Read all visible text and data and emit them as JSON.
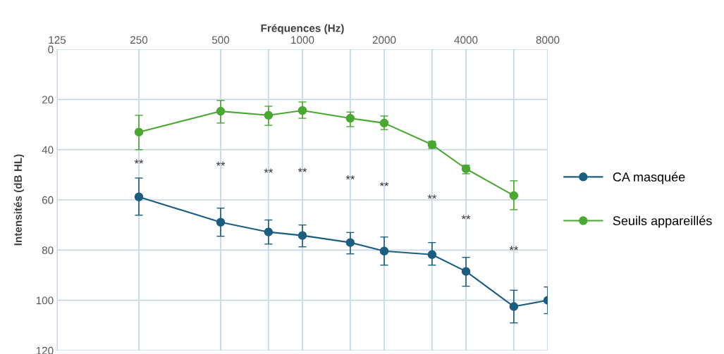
{
  "chart_data": {
    "type": "line",
    "xlabel": "Fréquences (Hz)",
    "ylabel": "Intensités (dB HL)",
    "log": "x",
    "xlim": [
      125,
      8000
    ],
    "ylim": [
      120,
      0
    ],
    "xticks": [
      125,
      250,
      500,
      {
        "value": 750,
        "label": null
      },
      1000,
      {
        "value": 1500,
        "label": null
      },
      2000,
      {
        "value": 3000,
        "label": null
      },
      4000,
      {
        "value": 6000,
        "label": null
      },
      8000
    ],
    "yticks": [
      0,
      20,
      40,
      60,
      80,
      100,
      120
    ],
    "grid": true,
    "legend": "right",
    "marker": "circle",
    "line_style": "solid",
    "series": [
      {
        "name": "CA masquée",
        "color": "#1b5e80",
        "x": [
          250,
          500,
          750,
          1000,
          1500,
          2000,
          3000,
          4000,
          6000,
          8000
        ],
        "values": [
          58.8,
          68.9,
          72.8,
          74.2,
          77,
          80.4,
          81.8,
          88.5,
          102.5,
          100
        ],
        "errors": [
          [
            51.3,
            66.1
          ],
          [
            63.3,
            74.5
          ],
          [
            68,
            77.6
          ],
          [
            70,
            78.7
          ],
          [
            73,
            81.5
          ],
          [
            74.8,
            86
          ],
          [
            77,
            86
          ],
          [
            82.9,
            94.4
          ],
          [
            96,
            109
          ],
          [
            94.7,
            105.3
          ]
        ]
      },
      {
        "name": "Seuils appareillés",
        "color": "#4aa832",
        "x": [
          250,
          500,
          750,
          1000,
          1500,
          2000,
          3000,
          4000,
          6000
        ],
        "values": [
          33,
          24.7,
          26.3,
          24.4,
          27.5,
          29.4,
          38,
          47.6,
          58.3
        ],
        "errors": [
          [
            26.3,
            40
          ],
          [
            20.4,
            29.4
          ],
          [
            22.7,
            30.3
          ],
          [
            21,
            27.5
          ],
          [
            25,
            30.8
          ],
          [
            26.6,
            32
          ],
          [
            36.7,
            39.5
          ],
          [
            46.2,
            49.6
          ],
          [
            52.4,
            63.9
          ]
        ]
      }
    ],
    "annotations": [
      "**",
      "**",
      "**",
      "**",
      "**",
      "**",
      "**",
      "**",
      "**"
    ]
  }
}
